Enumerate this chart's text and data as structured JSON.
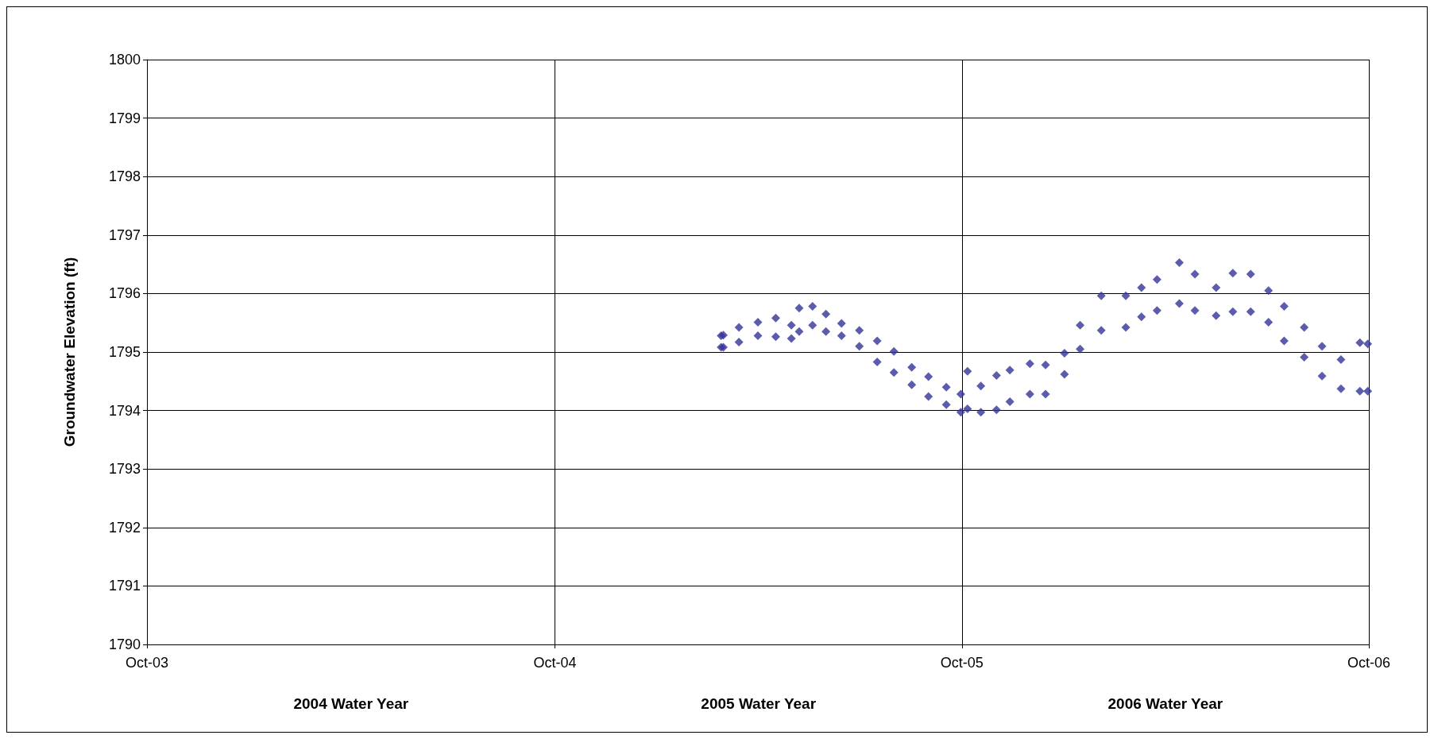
{
  "chart_data": {
    "type": "scatter",
    "ylabel": "Groundwater Elevation (ft)",
    "marker": "diamond",
    "grid": true,
    "xlim": [
      "2003-10-01",
      "2006-10-01"
    ],
    "xticks": [
      {
        "value": "2003-10-01",
        "label": "Oct-03"
      },
      {
        "value": "2004-10-01",
        "label": "Oct-04"
      },
      {
        "value": "2005-10-01",
        "label": "Oct-05"
      },
      {
        "value": "2006-10-01",
        "label": "Oct-06"
      }
    ],
    "ylim": [
      1790,
      1800
    ],
    "yticks": [
      1790,
      1791,
      1792,
      1793,
      1794,
      1795,
      1796,
      1797,
      1798,
      1799,
      1800
    ],
    "annotations": [
      "2004 Water Year",
      "2005 Water Year",
      "2006 Water Year"
    ],
    "series": [
      {
        "color": "#333399",
        "x": [
          "2005-02-27",
          "2005-02-27",
          "2005-03-01",
          "2005-03-01",
          "2005-03-15",
          "2005-03-15",
          "2005-04-01",
          "2005-04-01",
          "2005-04-17",
          "2005-04-17",
          "2005-05-01",
          "2005-05-01",
          "2005-05-08",
          "2005-05-08",
          "2005-05-20",
          "2005-05-20",
          "2005-06-01",
          "2005-06-01",
          "2005-06-15",
          "2005-06-15",
          "2005-07-01",
          "2005-07-01",
          "2005-07-17",
          "2005-07-17",
          "2005-08-01",
          "2005-08-01",
          "2005-08-17",
          "2005-08-17",
          "2005-09-01",
          "2005-09-01",
          "2005-09-17",
          "2005-09-17",
          "2005-09-30",
          "2005-09-30",
          "2005-10-06",
          "2005-10-06",
          "2005-10-18",
          "2005-10-18",
          "2005-11-01",
          "2005-11-01",
          "2005-11-13",
          "2005-11-13",
          "2005-12-01",
          "2005-12-01",
          "2005-12-15",
          "2005-12-15",
          "2006-01-01",
          "2006-01-01",
          "2006-01-15",
          "2006-01-15",
          "2006-02-03",
          "2006-02-03",
          "2006-02-25",
          "2006-02-25",
          "2006-03-11",
          "2006-03-11",
          "2006-03-25",
          "2006-03-25",
          "2006-04-14",
          "2006-04-14",
          "2006-04-28",
          "2006-04-28",
          "2006-05-17",
          "2006-05-17",
          "2006-06-01",
          "2006-06-01",
          "2006-06-17",
          "2006-06-17",
          "2006-07-03",
          "2006-07-03",
          "2006-07-17",
          "2006-07-17",
          "2006-08-04",
          "2006-08-04",
          "2006-08-20",
          "2006-08-20",
          "2006-09-06",
          "2006-09-06",
          "2006-09-23",
          "2006-09-23",
          "2006-09-30",
          "2006-09-30"
        ],
        "values": [
          1795.28,
          1795.08,
          1795.29,
          1795.08,
          1795.42,
          1795.17,
          1795.51,
          1795.28,
          1795.58,
          1795.26,
          1795.46,
          1795.23,
          1795.75,
          1795.35,
          1795.78,
          1795.46,
          1795.65,
          1795.35,
          1795.49,
          1795.28,
          1795.37,
          1795.1,
          1795.19,
          1794.83,
          1795.01,
          1794.65,
          1794.74,
          1794.44,
          1794.58,
          1794.24,
          1794.4,
          1794.1,
          1794.28,
          1793.97,
          1794.67,
          1794.03,
          1794.42,
          1793.97,
          1794.6,
          1794.01,
          1794.69,
          1794.15,
          1794.8,
          1794.28,
          1794.78,
          1794.28,
          1794.98,
          1794.62,
          1795.46,
          1795.05,
          1795.96,
          1795.37,
          1795.96,
          1795.42,
          1796.1,
          1795.6,
          1796.24,
          1795.71,
          1796.53,
          1795.83,
          1796.33,
          1795.71,
          1796.1,
          1795.62,
          1796.35,
          1795.69,
          1796.33,
          1795.69,
          1796.05,
          1795.51,
          1795.78,
          1795.19,
          1795.42,
          1794.91,
          1795.1,
          1794.59,
          1794.87,
          1794.37,
          1795.16,
          1794.33,
          1795.14,
          1794.33
        ]
      }
    ]
  }
}
